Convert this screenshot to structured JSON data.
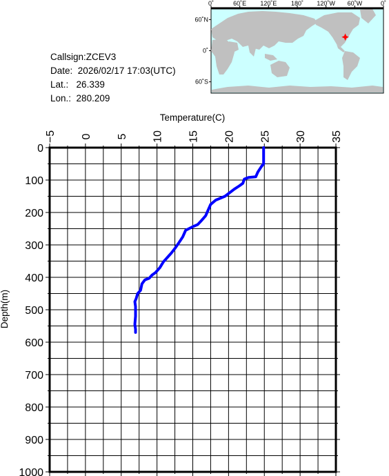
{
  "info": {
    "callsign_label": "Callsign:",
    "callsign": "ZCEV3",
    "date_label": "Date:",
    "date": "2026/02/17 17:03(UTC)",
    "lat_label": "Lat.:",
    "lat": "26.339",
    "lon_label": "Lon.:",
    "lon": "280.209"
  },
  "map": {
    "lon_ticks": [
      "0˚",
      "60˚E",
      "120˚E",
      "180˚",
      "120˚W",
      "60˚W",
      "0˚"
    ],
    "lat_ticks": [
      "60˚N",
      "0˚",
      "60˚S"
    ],
    "ocean_color": "#ccffff",
    "land_color": "#c0c0c0",
    "marker_color": "#ff0000",
    "marker": {
      "lat": 26.339,
      "lon": 280.209
    }
  },
  "chart_data": {
    "type": "line",
    "title": "",
    "xlabel": "Temperature(C)",
    "ylabel": "Depth(m)",
    "xlim": [
      -5,
      35
    ],
    "ylim": [
      0,
      1000
    ],
    "y_inverted": true,
    "x_axis_position": "top",
    "grid": true,
    "x_ticks": [
      "−5",
      "0",
      "5",
      "10",
      "15",
      "20",
      "25",
      "30",
      "35"
    ],
    "y_ticks": [
      "0",
      "100",
      "200",
      "300",
      "400",
      "500",
      "600",
      "700",
      "800",
      "900",
      "1000"
    ],
    "series": [
      {
        "color": "#0000ff",
        "points": [
          [
            24.9,
            0
          ],
          [
            24.9,
            50
          ],
          [
            24.6,
            58
          ],
          [
            24.1,
            75
          ],
          [
            23.8,
            90
          ],
          [
            22.8,
            92
          ],
          [
            22.2,
            97
          ],
          [
            22.0,
            110
          ],
          [
            21.5,
            118
          ],
          [
            20.8,
            128
          ],
          [
            19.5,
            150
          ],
          [
            18.2,
            162
          ],
          [
            17.5,
            175
          ],
          [
            17.1,
            195
          ],
          [
            16.8,
            210
          ],
          [
            16.2,
            225
          ],
          [
            15.7,
            237
          ],
          [
            14.9,
            245
          ],
          [
            14.0,
            255
          ],
          [
            13.6,
            275
          ],
          [
            13.1,
            292
          ],
          [
            12.6,
            308
          ],
          [
            12.0,
            325
          ],
          [
            11.8,
            330
          ],
          [
            11.2,
            345
          ],
          [
            10.9,
            352
          ],
          [
            10.4,
            370
          ],
          [
            9.8,
            385
          ],
          [
            9.3,
            393
          ],
          [
            8.9,
            403
          ],
          [
            8.3,
            408
          ],
          [
            7.9,
            420
          ],
          [
            7.7,
            440
          ],
          [
            7.3,
            450
          ],
          [
            7.1,
            465
          ],
          [
            6.9,
            475
          ],
          [
            7.0,
            490
          ],
          [
            7.0,
            520
          ],
          [
            6.9,
            545
          ],
          [
            7.0,
            560
          ],
          [
            7.0,
            570
          ]
        ]
      }
    ]
  }
}
